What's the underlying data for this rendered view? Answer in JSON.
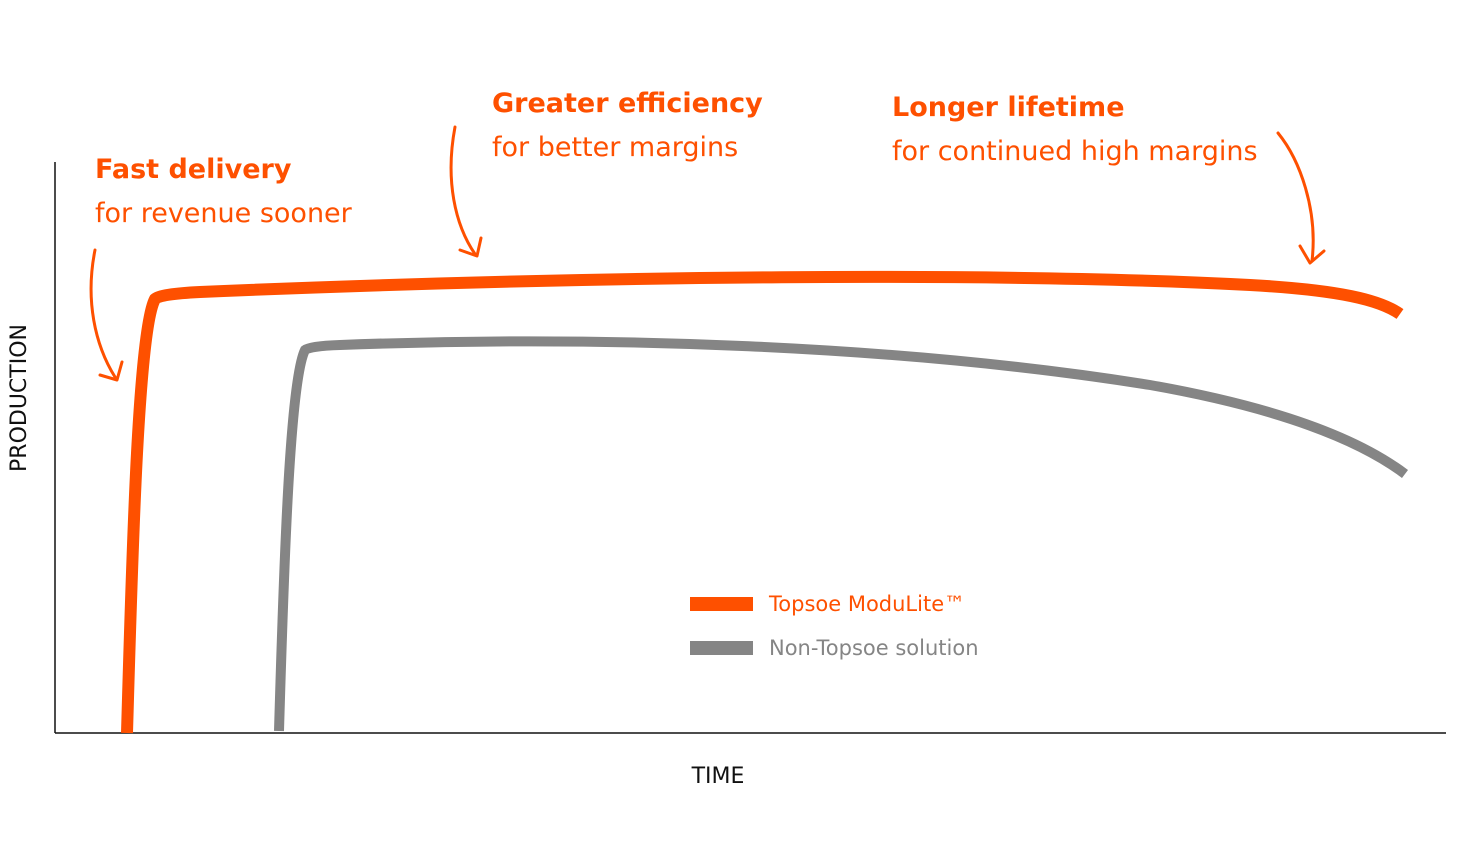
{
  "annotations": [
    {
      "title": "Fast delivery",
      "subtitle": "for revenue sooner"
    },
    {
      "title": "Greater efficiency",
      "subtitle": "for better margins"
    },
    {
      "title": "Longer lifetime",
      "subtitle": "for continued high margins"
    }
  ],
  "axes": {
    "x": "TIME",
    "y": "PRODUCTION"
  },
  "legend": [
    {
      "label": "Topsoe ModuLite™",
      "color": "#fe5000"
    },
    {
      "label": "Non-Topsoe solution",
      "color": "#858585"
    }
  ]
}
